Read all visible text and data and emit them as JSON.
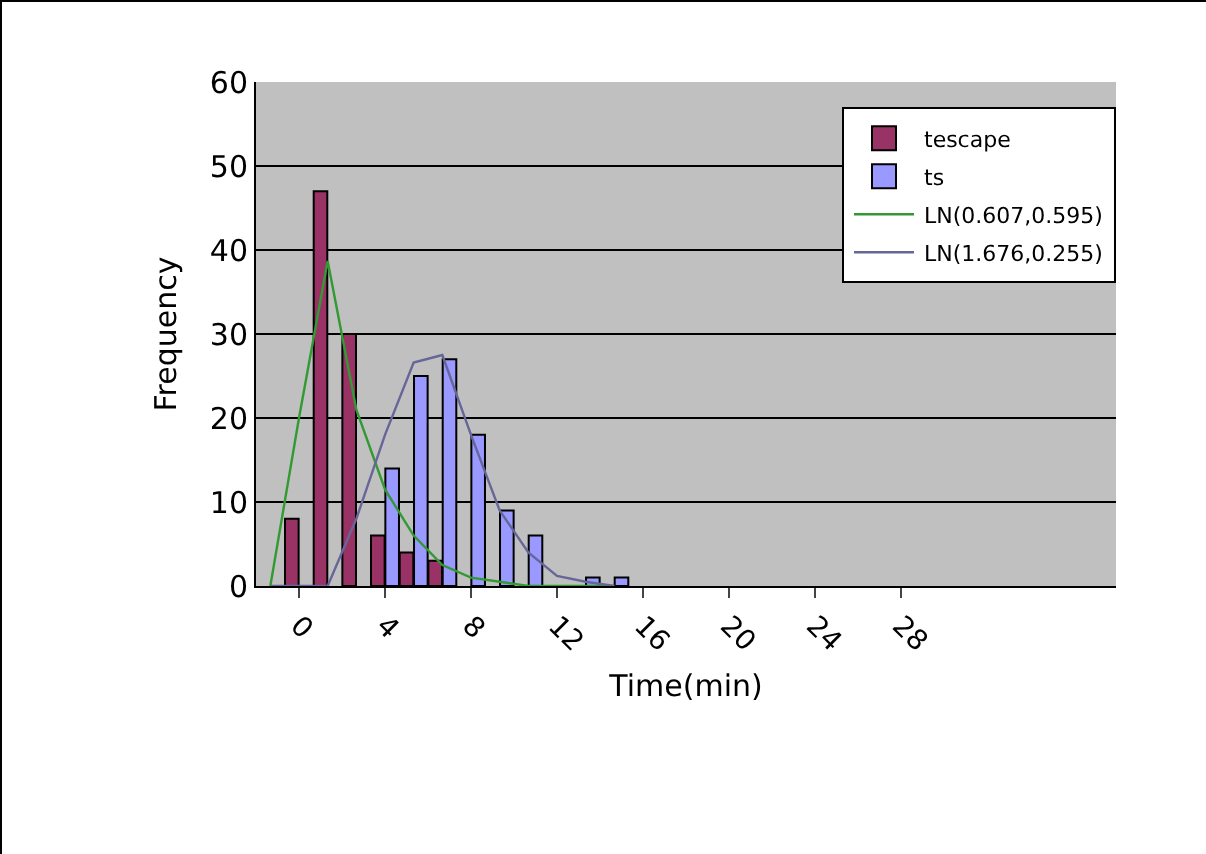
{
  "chart_data": {
    "type": "bar",
    "xlabel": "Time(min)",
    "ylabel": "Frequency",
    "categories": [
      null,
      "0",
      null,
      null,
      "4",
      null,
      null,
      "8",
      null,
      null,
      "12",
      null,
      null,
      "16",
      null,
      null,
      "20",
      null,
      null,
      "24",
      null,
      null,
      "28",
      null,
      null,
      null,
      null,
      null,
      null,
      null
    ],
    "series": [
      {
        "name": "tescape",
        "color": "#993366",
        "values": [
          null,
          8,
          47,
          30,
          6,
          4,
          3,
          null,
          null,
          null,
          null,
          null,
          null,
          null,
          null,
          null,
          null,
          null,
          null,
          null,
          null,
          null,
          null,
          null,
          null,
          null,
          null,
          null,
          null,
          null
        ]
      },
      {
        "name": "ts",
        "color": "#9999ff",
        "values": [
          null,
          null,
          null,
          null,
          14,
          25,
          27,
          18,
          9,
          6,
          null,
          1,
          1,
          null,
          null,
          null,
          null,
          null,
          null,
          null,
          null,
          null,
          null,
          null,
          null,
          null,
          null,
          null,
          null,
          null
        ]
      },
      {
        "name": "LN(0.607,0.595)",
        "type": "line",
        "color": "#339933",
        "values": [
          0,
          20,
          38.7,
          21,
          11.5,
          6,
          2.5,
          1,
          0.5,
          0,
          0,
          0,
          0,
          null,
          null,
          null,
          null,
          null,
          null,
          null,
          null,
          null,
          null,
          null,
          null,
          null,
          null,
          null,
          null,
          null
        ]
      },
      {
        "name": "LN(1.676,0.255)",
        "type": "line",
        "color": "#666699",
        "values": [
          0,
          0,
          0,
          8,
          18,
          26.6,
          27.5,
          18,
          9,
          4,
          1.2,
          0.5,
          0,
          null,
          null,
          null,
          null,
          null,
          null,
          null,
          null,
          null,
          null,
          null,
          null,
          null,
          null,
          null,
          null,
          null
        ]
      }
    ],
    "ylim": [
      0,
      60
    ],
    "yticks": [
      0,
      10,
      20,
      30,
      40,
      50,
      60
    ],
    "grid": "y",
    "legend": "top right",
    "line_style": "solid",
    "marker": "none"
  }
}
